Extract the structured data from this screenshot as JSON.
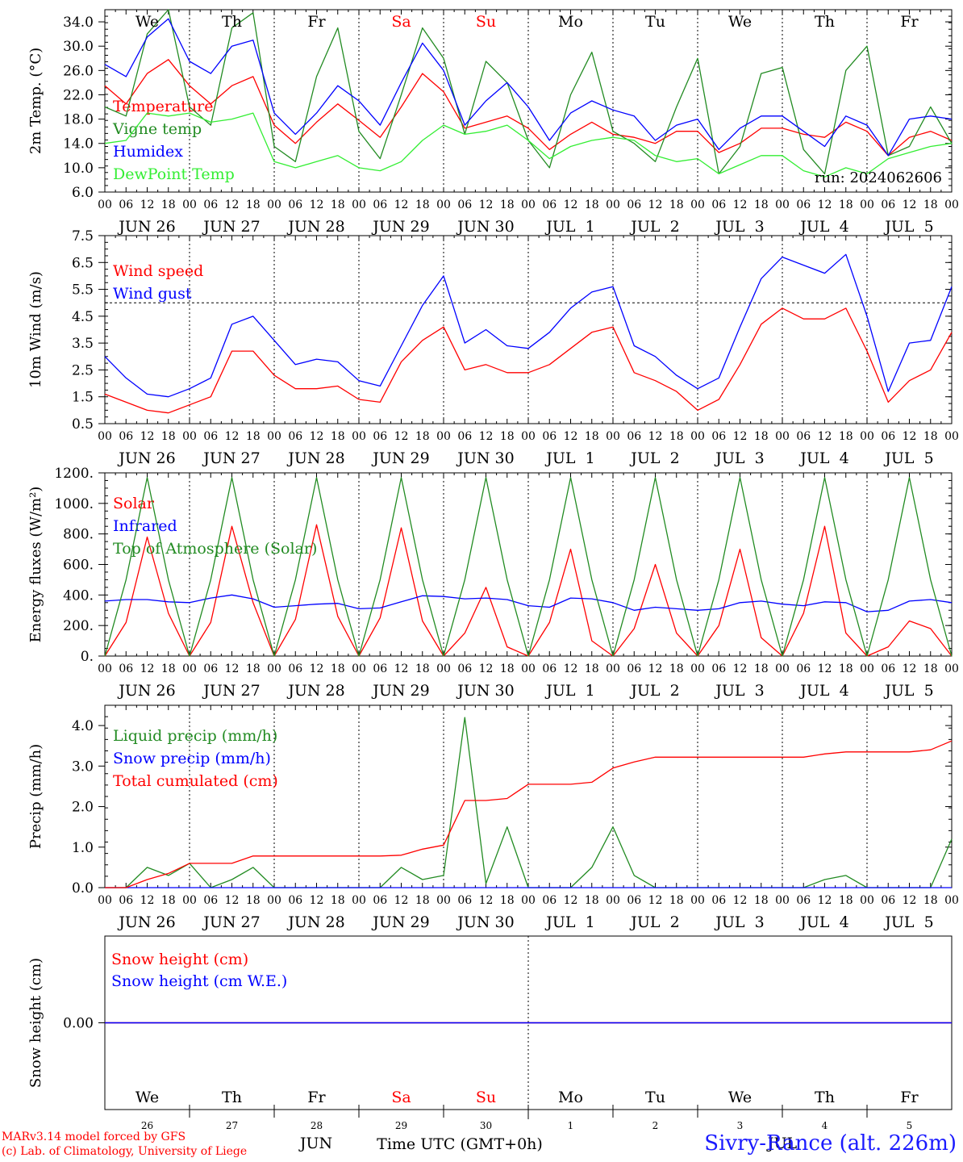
{
  "run_label": "run: 2024062606",
  "footer": {
    "line1": "MARv3.14 model forced by GFS",
    "line2": "(c) Lab. of Climatology, University of Liege",
    "station": "Sivry-Rance (alt. 226m)",
    "time_label": "Time UTC (GMT+0h)",
    "month_jun": "JUN",
    "month_jul": "JUL"
  },
  "weekdays": [
    {
      "label": "We",
      "color": "#000000"
    },
    {
      "label": "Th",
      "color": "#000000"
    },
    {
      "label": "Fr",
      "color": "#000000"
    },
    {
      "label": "Sa",
      "color": "#ff0000"
    },
    {
      "label": "Su",
      "color": "#ff0000"
    },
    {
      "label": "Mo",
      "color": "#000000"
    },
    {
      "label": "Tu",
      "color": "#000000"
    },
    {
      "label": "We",
      "color": "#000000"
    },
    {
      "label": "Th",
      "color": "#000000"
    },
    {
      "label": "Fr",
      "color": "#000000"
    }
  ],
  "day_labels": [
    "JUN 26",
    "JUN 27",
    "JUN 28",
    "JUN 29",
    "JUN 30",
    "JUL  1",
    "JUL  2",
    "JUL  3",
    "JUL  4",
    "JUL  5"
  ],
  "day_numbers": [
    "26",
    "27",
    "28",
    "29",
    "30",
    "1",
    "2",
    "3",
    "4",
    "5"
  ],
  "hour_ticks": [
    "00",
    "06",
    "12",
    "18"
  ],
  "chart_data": [
    {
      "type": "line",
      "ylabel": "2m Temp. (°C)",
      "ylim": [
        6,
        36
      ],
      "yticks": [
        "6.0",
        "10.0",
        "14.0",
        "18.0",
        "22.0",
        "26.0",
        "30.0",
        "34.0"
      ],
      "x_hours": [
        0,
        6,
        12,
        18,
        24,
        30,
        36,
        42,
        48,
        54,
        60,
        66,
        72,
        78,
        84,
        90,
        96,
        102,
        108,
        114,
        120,
        126,
        132,
        138,
        144,
        150,
        156,
        162,
        168,
        174,
        180,
        186,
        192,
        198,
        204,
        210,
        216,
        222,
        228,
        234,
        240
      ],
      "series": [
        {
          "name": "Temperature",
          "color": "#ff0000",
          "values": [
            23.5,
            20.5,
            25.5,
            27.8,
            23.5,
            20.5,
            23.5,
            25.0,
            17.0,
            14.0,
            17.5,
            20.5,
            17.8,
            15.0,
            20.0,
            25.5,
            22.5,
            16.5,
            17.5,
            18.5,
            16.5,
            13.0,
            15.5,
            17.5,
            15.5,
            15.0,
            14.0,
            16.0,
            16.0,
            12.5,
            14.0,
            16.5,
            16.5,
            15.5,
            15.0,
            17.5,
            16.0,
            12.0,
            15.0,
            16.0,
            14.5
          ]
        },
        {
          "name": "Vigne temp",
          "color": "#228b22",
          "values": [
            20.0,
            18.5,
            32.0,
            36.0,
            20.0,
            17.0,
            33.0,
            35.5,
            13.5,
            11.0,
            25.0,
            33.0,
            16.0,
            11.5,
            22.0,
            33.0,
            28.0,
            15.5,
            27.5,
            24.0,
            14.5,
            10.0,
            22.0,
            29.0,
            16.0,
            14.0,
            11.0,
            20.0,
            28.0,
            9.0,
            13.5,
            25.5,
            26.5,
            13.0,
            9.0,
            26.0,
            30.0,
            12.0,
            13.5,
            20.0,
            14.0
          ]
        },
        {
          "name": "Humidex",
          "color": "#0000ff",
          "values": [
            27.0,
            25.0,
            31.5,
            34.5,
            27.5,
            25.5,
            30.0,
            31.0,
            19.0,
            15.5,
            19.0,
            23.5,
            21.0,
            17.0,
            24.0,
            30.5,
            26.0,
            17.0,
            21.0,
            24.0,
            20.0,
            14.5,
            19.0,
            21.0,
            19.5,
            18.5,
            14.5,
            17.0,
            18.0,
            13.0,
            16.5,
            18.5,
            18.5,
            16.0,
            13.5,
            18.5,
            17.0,
            12.0,
            18.0,
            18.5,
            18.0
          ]
        },
        {
          "name": "DewPoint Temp",
          "color": "#33ee33",
          "values": [
            14.0,
            14.5,
            19.0,
            18.5,
            19.0,
            17.5,
            18.0,
            19.0,
            11.0,
            10.0,
            11.0,
            12.0,
            10.0,
            9.5,
            11.0,
            14.5,
            17.0,
            15.5,
            16.0,
            17.0,
            14.5,
            11.5,
            13.5,
            14.5,
            15.0,
            14.5,
            12.0,
            11.0,
            11.5,
            9.0,
            10.5,
            12.0,
            12.0,
            9.5,
            8.5,
            10.0,
            9.0,
            11.5,
            12.5,
            13.5,
            14.0
          ]
        }
      ]
    },
    {
      "type": "line",
      "ylabel": "10m Wind (m/s)",
      "ylim": [
        0.5,
        7.5
      ],
      "yticks": [
        "0.5",
        "1.5",
        "2.5",
        "3.5",
        "4.5",
        "5.5",
        "6.5",
        "7.5"
      ],
      "reference_line": 5.0,
      "x_hours": [
        0,
        6,
        12,
        18,
        24,
        30,
        36,
        42,
        48,
        54,
        60,
        66,
        72,
        78,
        84,
        90,
        96,
        102,
        108,
        114,
        120,
        126,
        132,
        138,
        144,
        150,
        156,
        162,
        168,
        174,
        180,
        186,
        192,
        198,
        204,
        210,
        216,
        222,
        228,
        234,
        240
      ],
      "series": [
        {
          "name": "Wind speed",
          "color": "#ff0000",
          "values": [
            1.6,
            1.3,
            1.0,
            0.9,
            1.2,
            1.5,
            3.2,
            3.2,
            2.3,
            1.8,
            1.8,
            1.9,
            1.4,
            1.3,
            2.8,
            3.6,
            4.1,
            2.5,
            2.7,
            2.4,
            2.4,
            2.7,
            3.3,
            3.9,
            4.1,
            2.4,
            2.1,
            1.7,
            1.0,
            1.4,
            2.7,
            4.2,
            4.8,
            4.4,
            4.4,
            4.8,
            3.2,
            1.3,
            2.1,
            2.5,
            3.9
          ]
        },
        {
          "name": "Wind gust",
          "color": "#0000ff",
          "values": [
            3.0,
            2.2,
            1.6,
            1.5,
            1.8,
            2.2,
            4.2,
            4.5,
            3.6,
            2.7,
            2.9,
            2.8,
            2.1,
            1.9,
            3.4,
            4.9,
            6.0,
            3.5,
            4.0,
            3.4,
            3.3,
            3.9,
            4.8,
            5.4,
            5.6,
            3.4,
            3.0,
            2.3,
            1.8,
            2.2,
            4.1,
            5.9,
            6.7,
            6.4,
            6.1,
            6.8,
            4.5,
            1.7,
            3.5,
            3.6,
            5.6
          ]
        }
      ]
    },
    {
      "type": "line",
      "ylabel": "Energy fluxes (W/m²)",
      "ylim": [
        0,
        1200
      ],
      "yticks": [
        "0.",
        "200.",
        "400.",
        "600.",
        "800.",
        "1000.",
        "1200."
      ],
      "x_hours": [
        0,
        6,
        12,
        18,
        24,
        30,
        36,
        42,
        48,
        54,
        60,
        66,
        72,
        78,
        84,
        90,
        96,
        102,
        108,
        114,
        120,
        126,
        132,
        138,
        144,
        150,
        156,
        162,
        168,
        174,
        180,
        186,
        192,
        198,
        204,
        210,
        216,
        222,
        228,
        234,
        240
      ],
      "series": [
        {
          "name": "Solar",
          "color": "#ff0000",
          "values": [
            0,
            220,
            780,
            280,
            0,
            220,
            850,
            350,
            0,
            240,
            860,
            260,
            0,
            250,
            840,
            230,
            0,
            150,
            450,
            60,
            0,
            220,
            700,
            100,
            0,
            180,
            600,
            150,
            0,
            200,
            700,
            120,
            0,
            280,
            850,
            150,
            0,
            60,
            230,
            180,
            0
          ]
        },
        {
          "name": "Infrared",
          "color": "#0000ff",
          "values": [
            360,
            370,
            370,
            355,
            350,
            380,
            400,
            375,
            320,
            330,
            340,
            345,
            310,
            315,
            355,
            395,
            390,
            375,
            380,
            370,
            330,
            320,
            380,
            375,
            350,
            300,
            320,
            310,
            300,
            310,
            350,
            360,
            340,
            330,
            355,
            350,
            290,
            300,
            360,
            370,
            350
          ]
        },
        {
          "name": "Top of Atmosphere (Solar)",
          "color": "#228b22",
          "values": [
            0,
            500,
            1170,
            500,
            0,
            500,
            1170,
            500,
            0,
            500,
            1170,
            500,
            0,
            500,
            1170,
            500,
            0,
            500,
            1170,
            500,
            0,
            500,
            1170,
            500,
            0,
            500,
            1170,
            500,
            0,
            500,
            1170,
            500,
            0,
            500,
            1170,
            500,
            0,
            500,
            1170,
            500,
            0
          ]
        }
      ]
    },
    {
      "type": "line",
      "ylabel": "Precip (mm/h)",
      "ylim": [
        0,
        4.5
      ],
      "yticks": [
        "0.0",
        "1.0",
        "2.0",
        "3.0",
        "4.0"
      ],
      "x_hours": [
        0,
        6,
        12,
        18,
        24,
        30,
        36,
        42,
        48,
        54,
        60,
        66,
        72,
        78,
        84,
        90,
        96,
        102,
        108,
        114,
        120,
        126,
        132,
        138,
        144,
        150,
        156,
        162,
        168,
        174,
        180,
        186,
        192,
        198,
        204,
        210,
        216,
        222,
        228,
        234,
        240
      ],
      "series": [
        {
          "name": "Liquid precip (mm/h)",
          "color": "#228b22",
          "values": [
            0,
            0,
            0.5,
            0.3,
            0.6,
            0,
            0.2,
            0.5,
            0,
            0,
            0,
            0,
            0,
            0,
            0.5,
            0.2,
            0.3,
            4.2,
            0.1,
            1.5,
            0,
            0,
            0,
            0.5,
            1.5,
            0.3,
            0,
            0,
            0,
            0,
            0,
            0,
            0,
            0,
            0.2,
            0.3,
            0,
            0,
            0,
            0,
            1.2
          ]
        },
        {
          "name": "Snow precip (mm/h)",
          "color": "#0000ff",
          "values": [
            0,
            0,
            0,
            0,
            0,
            0,
            0,
            0,
            0,
            0,
            0,
            0,
            0,
            0,
            0,
            0,
            0,
            0,
            0,
            0,
            0,
            0,
            0,
            0,
            0,
            0,
            0,
            0,
            0,
            0,
            0,
            0,
            0,
            0,
            0,
            0,
            0,
            0,
            0,
            0,
            0
          ]
        },
        {
          "name": "Total cumulated (cm)",
          "color": "#ff0000",
          "values": [
            0,
            0,
            0.2,
            0.35,
            0.6,
            0.6,
            0.6,
            0.78,
            0.78,
            0.78,
            0.78,
            0.78,
            0.78,
            0.78,
            0.8,
            0.95,
            1.05,
            2.15,
            2.15,
            2.2,
            2.55,
            2.55,
            2.55,
            2.6,
            2.95,
            3.1,
            3.22,
            3.22,
            3.22,
            3.22,
            3.22,
            3.22,
            3.22,
            3.22,
            3.3,
            3.35,
            3.35,
            3.35,
            3.35,
            3.4,
            3.62
          ]
        }
      ]
    },
    {
      "type": "line",
      "ylabel": "Snow height (cm)",
      "ylim": [
        -1,
        1
      ],
      "yticks": [
        "0.00"
      ],
      "x_hours": [
        0,
        240
      ],
      "series": [
        {
          "name": "Snow height (cm)",
          "color": "#ff0000",
          "values": [
            0,
            0
          ]
        },
        {
          "name": "Snow height (cm W.E.)",
          "color": "#0000ff",
          "values": [
            0,
            0
          ]
        }
      ]
    }
  ]
}
